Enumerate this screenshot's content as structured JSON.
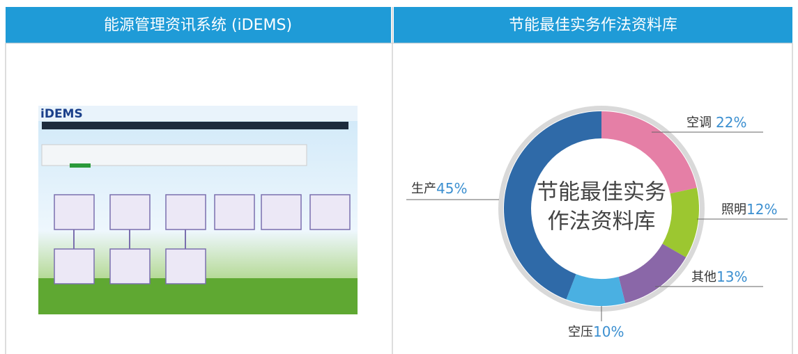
{
  "panels": [
    {
      "title": "能源管理资讯系统 (iDEMS)"
    },
    {
      "title": "节能最佳实务作法资料库"
    }
  ],
  "screenshot": {
    "title": "iDEMS"
  },
  "chart_data": {
    "type": "pie",
    "center_text": [
      "节能最佳实务",
      "作法资料库"
    ],
    "categories": [
      "空调",
      "照明",
      "其他",
      "空压",
      "生产"
    ],
    "values": [
      22,
      12,
      13,
      10,
      45
    ],
    "value_labels": [
      "22%",
      "12%",
      "13%",
      "10%",
      "45%"
    ],
    "colors": [
      "#e57fa6",
      "#9cc730",
      "#8a67a8",
      "#4ab0e2",
      "#2f6aa8"
    ]
  }
}
